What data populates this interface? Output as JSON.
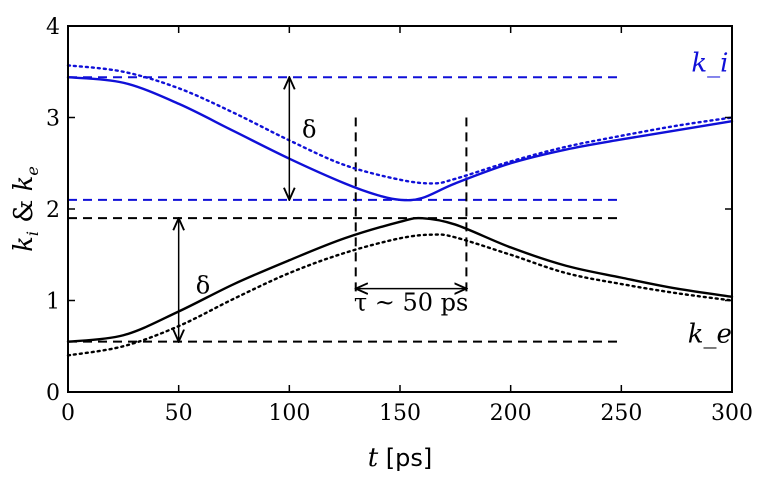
{
  "chart_data": {
    "type": "line",
    "xlabel": "t [ps]",
    "ylabel": "k_i & k_e",
    "xlim": [
      0,
      300
    ],
    "ylim": [
      0,
      4
    ],
    "xticks": [
      0,
      50,
      100,
      150,
      200,
      250,
      300
    ],
    "yticks": [
      0,
      1,
      2,
      3,
      4
    ],
    "grid": false,
    "colors": {
      "ki": "#1010d8",
      "ke": "#000000"
    },
    "series": [
      {
        "name": "k_i",
        "style": "solid",
        "color": "#1010d8",
        "x": [
          0,
          25,
          50,
          75,
          100,
          125,
          140,
          150,
          160,
          175,
          200,
          225,
          250,
          275,
          300
        ],
        "y": [
          3.44,
          3.38,
          3.15,
          2.85,
          2.55,
          2.28,
          2.15,
          2.1,
          2.12,
          2.28,
          2.5,
          2.65,
          2.76,
          2.86,
          2.96
        ]
      },
      {
        "style": "dotted",
        "color": "#1010d8",
        "x": [
          0,
          25,
          50,
          75,
          100,
          125,
          150,
          165,
          175,
          200,
          225,
          250,
          275,
          300
        ],
        "y": [
          3.57,
          3.5,
          3.32,
          3.05,
          2.75,
          2.48,
          2.32,
          2.28,
          2.33,
          2.52,
          2.68,
          2.8,
          2.91,
          3.0
        ]
      },
      {
        "name": "k_e",
        "style": "solid",
        "color": "#000000",
        "x": [
          0,
          25,
          50,
          75,
          100,
          125,
          150,
          160,
          175,
          200,
          225,
          250,
          275,
          300
        ],
        "y": [
          0.55,
          0.62,
          0.88,
          1.18,
          1.44,
          1.68,
          1.86,
          1.9,
          1.83,
          1.58,
          1.38,
          1.25,
          1.13,
          1.04
        ]
      },
      {
        "style": "dotted",
        "color": "#000000",
        "x": [
          0,
          25,
          50,
          75,
          100,
          125,
          150,
          165,
          175,
          200,
          225,
          250,
          275,
          300
        ],
        "y": [
          0.4,
          0.5,
          0.72,
          1.02,
          1.3,
          1.52,
          1.68,
          1.72,
          1.69,
          1.5,
          1.3,
          1.18,
          1.08,
          1.0
        ]
      }
    ],
    "reference_lines": [
      {
        "y": 3.44,
        "x_range": [
          0,
          250
        ],
        "style": "dashed",
        "color": "#1010d8"
      },
      {
        "y": 2.1,
        "x_range": [
          0,
          250
        ],
        "style": "dashed",
        "color": "#1010d8"
      },
      {
        "y": 1.9,
        "x_range": [
          0,
          250
        ],
        "style": "dashed",
        "color": "#000000"
      },
      {
        "y": 0.55,
        "x_range": [
          0,
          250
        ],
        "style": "dashed",
        "color": "#000000"
      },
      {
        "x": 130,
        "y_range": [
          1.1,
          3.0
        ],
        "style": "dashed",
        "color": "#000000"
      },
      {
        "x": 180,
        "y_range": [
          1.1,
          3.0
        ],
        "style": "dashed",
        "color": "#000000"
      }
    ],
    "annotations": [
      {
        "text": "δ",
        "arrow_x": 100,
        "arrow_y": [
          2.1,
          3.44
        ],
        "text_x": 109,
        "text_y": 2.85
      },
      {
        "text": "δ",
        "arrow_x": 50,
        "arrow_y": [
          0.55,
          1.9
        ],
        "text_x": 61,
        "text_y": 1.15
      },
      {
        "text": "τ ~ 50 ps",
        "arrow_x": [
          130,
          180
        ],
        "arrow_y": 1.13,
        "text_x": 155,
        "text_y": 0.96
      }
    ],
    "series_labels": [
      {
        "text": "k_i",
        "color": "#1010d8",
        "x": 290,
        "y": 3.58
      },
      {
        "text": "k_e",
        "color": "#000000",
        "x": 290,
        "y": 0.62
      }
    ]
  }
}
